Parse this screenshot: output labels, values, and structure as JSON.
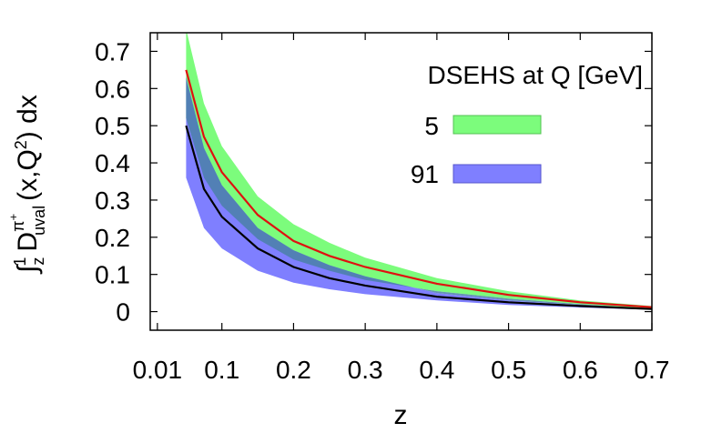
{
  "chart_data": {
    "type": "area",
    "title": "",
    "xlabel": "z",
    "ylabel": "∫ D dx",
    "ylabel_parts": {
      "integral": "∫",
      "lower": "z",
      "upper": "1",
      "D": "D",
      "sup": "π",
      "sup_sign": "+",
      "sub": "uval",
      "args1": "(x,Q",
      "args_pow": "2",
      "args2": ") dx"
    },
    "xlim": [
      0.0,
      0.7
    ],
    "ylim": [
      -0.05,
      0.75
    ],
    "xticks": [
      0.01,
      0.1,
      0.2,
      0.3,
      0.4,
      0.5,
      0.6,
      0.7
    ],
    "xtick_labels": [
      "0.01",
      "0.1",
      "0.2",
      "0.3",
      "0.4",
      "0.5",
      "0.6",
      "0.7"
    ],
    "yticks": [
      0,
      0.1,
      0.2,
      0.3,
      0.4,
      0.5,
      0.6,
      0.7
    ],
    "ytick_labels": [
      "0",
      "0.1",
      "0.2",
      "0.3",
      "0.4",
      "0.5",
      "0.6",
      "0.7"
    ],
    "grid": false,
    "legend_title": "DSEHS at Q [GeV]",
    "legend_placement": "top-right",
    "x": [
      0.05,
      0.075,
      0.1,
      0.15,
      0.2,
      0.25,
      0.3,
      0.4,
      0.5,
      0.6,
      0.7
    ],
    "series": [
      {
        "name": "5",
        "band_color": "#7cfc7c",
        "line_color": "#e01010",
        "central": [
          0.65,
          0.47,
          0.375,
          0.26,
          0.19,
          0.15,
          0.12,
          0.075,
          0.045,
          0.025,
          0.012
        ],
        "lower": [
          0.52,
          0.36,
          0.285,
          0.195,
          0.14,
          0.11,
          0.085,
          0.055,
          0.035,
          0.02,
          0.008
        ],
        "upper": [
          0.76,
          0.56,
          0.445,
          0.31,
          0.235,
          0.185,
          0.145,
          0.09,
          0.055,
          0.03,
          0.015
        ]
      },
      {
        "name": "91",
        "band_color": "#7f7fff",
        "line_color": "#000000",
        "central": [
          0.5,
          0.33,
          0.255,
          0.17,
          0.12,
          0.09,
          0.07,
          0.04,
          0.025,
          0.015,
          0.007
        ],
        "lower": [
          0.36,
          0.225,
          0.17,
          0.11,
          0.078,
          0.06,
          0.047,
          0.03,
          0.018,
          0.011,
          0.005
        ],
        "upper": [
          0.63,
          0.44,
          0.34,
          0.225,
          0.165,
          0.125,
          0.095,
          0.05,
          0.03,
          0.018,
          0.009
        ]
      }
    ]
  }
}
